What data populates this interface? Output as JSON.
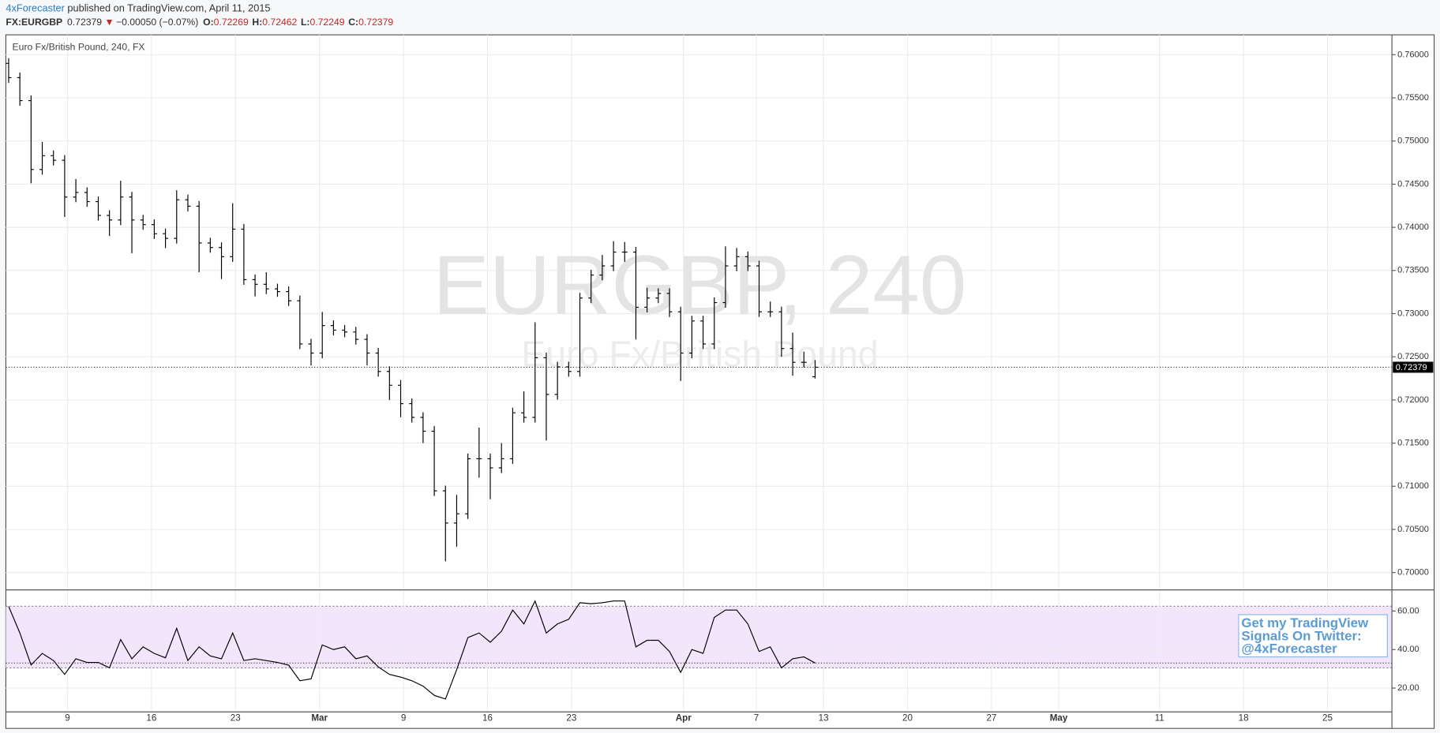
{
  "header": {
    "author": "4xForecaster",
    "published": "published on TradingView.com, April 11, 2015",
    "symbol": "FX:EURGBP",
    "last": "0.72379",
    "arrow": "▼",
    "change": "−0.00050 (−0.07%)",
    "o_label": "O:",
    "o": "0.72269",
    "h_label": "H:",
    "h": "0.72462",
    "l_label": "L:",
    "l": "0.72249",
    "c_label": "C:",
    "c": "0.72379"
  },
  "chart_data": [
    {
      "type": "ohlc",
      "title": "Euro Fx/British Pound, 240, FX",
      "watermark": "EURGBP, 240",
      "watermark_sub": "Euro Fx/British Pound",
      "color": "#000000",
      "grid": true,
      "x": [
        0,
        4,
        8,
        12,
        16,
        20,
        24,
        28,
        32,
        36,
        40,
        44,
        48,
        52,
        56,
        60,
        64,
        68,
        72,
        76,
        80,
        84,
        88,
        92,
        96,
        100,
        104,
        108,
        112,
        116,
        120,
        124,
        128,
        132,
        136,
        140,
        144,
        148,
        152,
        156,
        160,
        164,
        168,
        172,
        176,
        180,
        184,
        188,
        192,
        196,
        200,
        204,
        208,
        212,
        216,
        220,
        224,
        228,
        232,
        236,
        240,
        244,
        248,
        252,
        256,
        260,
        264,
        268,
        272,
        276,
        280,
        284,
        288
      ],
      "open": [
        0.759,
        0.75734,
        0.75468,
        0.7467,
        0.7483,
        0.74777,
        0.74351,
        0.74404,
        0.74298,
        0.74138,
        0.74085,
        0.74351,
        0.74085,
        0.74032,
        0.73926,
        0.73872,
        0.74319,
        0.74245,
        0.73819,
        0.73766,
        0.7366,
        0.73979,
        0.73394,
        0.7334,
        0.73287,
        0.73255,
        0.73149,
        0.72649,
        0.72543,
        0.72862,
        0.72809,
        0.72787,
        0.72702,
        0.72543,
        0.7233,
        0.7217,
        0.71957,
        0.71798,
        0.71638,
        0.70947,
        0.70574,
        0.70681,
        0.71319,
        0.71319,
        0.71213,
        0.71319,
        0.71851,
        0.71798,
        0.72489,
        0.72064,
        0.72383,
        0.7233,
        0.73181,
        0.73447,
        0.73553,
        0.73713,
        0.73713,
        0.73074,
        0.73181,
        0.73234,
        0.73021,
        0.72543,
        0.72915,
        0.72649,
        0.73128,
        0.73553,
        0.7366,
        0.73553,
        0.73021,
        0.73021,
        0.72596,
        0.72436,
        0.72269
      ],
      "high": [
        0.7596,
        0.75794,
        0.75528,
        0.7499,
        0.7489,
        0.74837,
        0.7456,
        0.74464,
        0.74358,
        0.74198,
        0.7454,
        0.74411,
        0.74145,
        0.74092,
        0.73986,
        0.7443,
        0.74379,
        0.74305,
        0.73879,
        0.73826,
        0.7428,
        0.74039,
        0.73454,
        0.7348,
        0.73347,
        0.73315,
        0.73209,
        0.72709,
        0.7302,
        0.72922,
        0.72869,
        0.72847,
        0.72762,
        0.72603,
        0.7239,
        0.7223,
        0.72017,
        0.71858,
        0.71698,
        0.71007,
        0.709,
        0.71379,
        0.7168,
        0.71379,
        0.715,
        0.71911,
        0.721,
        0.729,
        0.72549,
        0.72443,
        0.72443,
        0.73241,
        0.73507,
        0.7368,
        0.7384,
        0.7383,
        0.73773,
        0.733,
        0.73294,
        0.73294,
        0.73081,
        0.72975,
        0.72975,
        0.73188,
        0.7378,
        0.7376,
        0.7372,
        0.73613,
        0.7314,
        0.73081,
        0.7278,
        0.7256,
        0.72462
      ],
      "low": [
        0.75674,
        0.75408,
        0.7451,
        0.7461,
        0.74717,
        0.7412,
        0.74291,
        0.74238,
        0.74078,
        0.739,
        0.74025,
        0.737,
        0.73972,
        0.73866,
        0.7376,
        0.73812,
        0.74185,
        0.7348,
        0.73706,
        0.734,
        0.736,
        0.73334,
        0.732,
        0.73227,
        0.73195,
        0.73089,
        0.72589,
        0.724,
        0.72483,
        0.72749,
        0.72727,
        0.72642,
        0.724,
        0.7227,
        0.72,
        0.718,
        0.71738,
        0.715,
        0.70887,
        0.7013,
        0.703,
        0.70621,
        0.711,
        0.7085,
        0.71153,
        0.71259,
        0.71738,
        0.71738,
        0.7153,
        0.72004,
        0.7227,
        0.7227,
        0.73121,
        0.73387,
        0.73493,
        0.736,
        0.727,
        0.73014,
        0.73121,
        0.72961,
        0.7222,
        0.72483,
        0.72589,
        0.72589,
        0.73068,
        0.73493,
        0.73493,
        0.72961,
        0.72961,
        0.725,
        0.7228,
        0.72376,
        0.72249
      ],
      "close": [
        0.75734,
        0.75468,
        0.7467,
        0.7483,
        0.74777,
        0.74351,
        0.74404,
        0.74298,
        0.74138,
        0.74085,
        0.74351,
        0.74085,
        0.74032,
        0.73926,
        0.73872,
        0.74319,
        0.74245,
        0.73819,
        0.73766,
        0.7366,
        0.73979,
        0.73394,
        0.7334,
        0.73287,
        0.73255,
        0.73149,
        0.72649,
        0.72543,
        0.72862,
        0.72809,
        0.72787,
        0.72702,
        0.72543,
        0.7233,
        0.7217,
        0.71957,
        0.71798,
        0.71638,
        0.70947,
        0.70574,
        0.70681,
        0.71319,
        0.71319,
        0.71213,
        0.71319,
        0.71851,
        0.71798,
        0.72489,
        0.72064,
        0.72383,
        0.7233,
        0.73181,
        0.73447,
        0.73553,
        0.73713,
        0.73713,
        0.73074,
        0.73181,
        0.73234,
        0.73021,
        0.72543,
        0.72915,
        0.72649,
        0.73128,
        0.73553,
        0.7366,
        0.73553,
        0.73021,
        0.73021,
        0.72596,
        0.72436,
        0.72436,
        0.72379
      ],
      "xlim": [
        -1,
        494
      ],
      "ylim": [
        0.6981,
        0.7623
      ],
      "yticks": [
        {
          "value": 0.7,
          "label": "0.70000"
        },
        {
          "value": 0.705,
          "label": "0.70500"
        },
        {
          "value": 0.71,
          "label": "0.71000"
        },
        {
          "value": 0.715,
          "label": "0.71500"
        },
        {
          "value": 0.72,
          "label": "0.72000"
        },
        {
          "value": 0.725,
          "label": "0.72500"
        },
        {
          "value": 0.73,
          "label": "0.73000"
        },
        {
          "value": 0.735,
          "label": "0.73500"
        },
        {
          "value": 0.74,
          "label": "0.74000"
        },
        {
          "value": 0.745,
          "label": "0.74500"
        },
        {
          "value": 0.75,
          "label": "0.75000"
        },
        {
          "value": 0.755,
          "label": "0.75500"
        },
        {
          "value": 0.76,
          "label": "0.76000"
        }
      ]
    },
    {
      "type": "line",
      "color": "#000000",
      "band_color": "#f3e6fc",
      "band": [
        30.5,
        62.5
      ],
      "values": [
        62.4,
        48.6,
        32,
        38,
        34.3,
        27.1,
        35.2,
        33.3,
        33.3,
        30.5,
        45.2,
        35.2,
        41.4,
        38,
        35.7,
        51,
        34.3,
        41.4,
        36.7,
        35.2,
        48.6,
        34.3,
        35.2,
        34.3,
        33.3,
        31.9,
        23.8,
        24.8,
        42.4,
        40,
        41.4,
        35.2,
        36.7,
        31,
        27.1,
        25.7,
        23.8,
        21,
        16.2,
        14.3,
        29.5,
        46.2,
        48.6,
        43.8,
        49.5,
        60.5,
        53.3,
        65.2,
        48.6,
        53.3,
        55.7,
        64.3,
        63.8,
        64.3,
        65.2,
        65.2,
        41.4,
        44.8,
        44.8,
        39,
        28.1,
        40,
        38,
        56.7,
        60.5,
        60.5,
        53.3,
        39,
        41.4,
        30.5,
        35.2,
        36.2,
        33
      ],
      "ylim": [
        8.1,
        70.5
      ],
      "yticks": [
        {
          "value": 20,
          "label": "20.00"
        },
        {
          "value": 40,
          "label": "40.00"
        },
        {
          "value": 60,
          "label": "60.00"
        }
      ],
      "xticks": [
        {
          "value": 21,
          "label": "9"
        },
        {
          "value": 51,
          "label": "16"
        },
        {
          "value": 81,
          "label": "23"
        },
        {
          "value": 111,
          "label": "Mar"
        },
        {
          "value": 141,
          "label": "9"
        },
        {
          "value": 171,
          "label": "16"
        },
        {
          "value": 201,
          "label": "23"
        },
        {
          "value": 241,
          "label": "Apr"
        },
        {
          "value": 267,
          "label": "7"
        },
        {
          "value": 291,
          "label": "13"
        },
        {
          "value": 321,
          "label": "20"
        },
        {
          "value": 351,
          "label": "27"
        },
        {
          "value": 375,
          "label": "May"
        },
        {
          "value": 411,
          "label": "11"
        },
        {
          "value": 441,
          "label": "18"
        },
        {
          "value": 471,
          "label": "25"
        }
      ],
      "promo": [
        "Get my TradingView",
        "Signals On Twitter:",
        "@4xForecaster"
      ]
    }
  ]
}
